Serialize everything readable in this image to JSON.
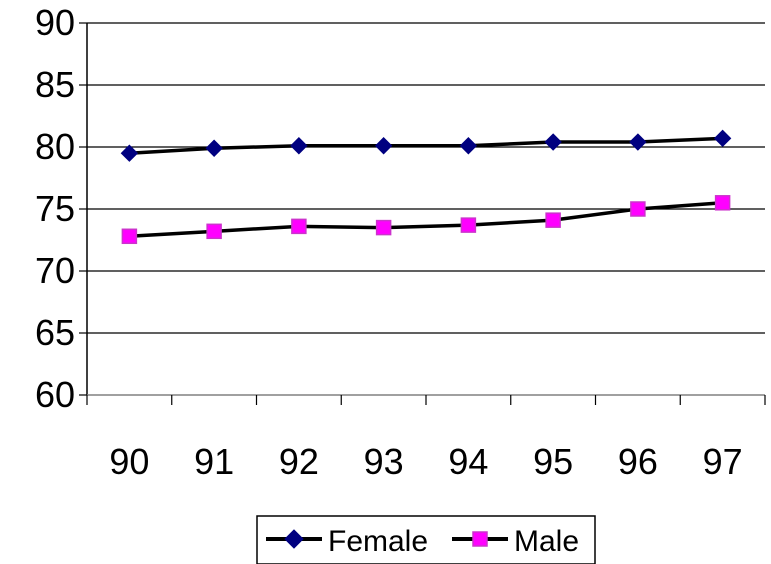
{
  "chart_data": {
    "type": "line",
    "title": "",
    "xlabel": "",
    "ylabel": "",
    "categories": [
      "90",
      "91",
      "92",
      "93",
      "94",
      "95",
      "96",
      "97"
    ],
    "ylim": [
      60,
      90
    ],
    "yticks": [
      "60",
      "65",
      "70",
      "75",
      "80",
      "85",
      "90"
    ],
    "grid": "horizontal",
    "legend": "bottom",
    "series": [
      {
        "name": "Female",
        "values": [
          79.5,
          79.9,
          80.1,
          80.1,
          80.1,
          80.4,
          80.4,
          80.7
        ],
        "marker": "diamond",
        "line_color": "#000000",
        "marker_color": "#000080"
      },
      {
        "name": "Male",
        "values": [
          72.8,
          73.2,
          73.6,
          73.5,
          73.7,
          74.1,
          75.0,
          75.5
        ],
        "marker": "square",
        "line_color": "#000000",
        "marker_color": "#FF00FF"
      }
    ]
  }
}
